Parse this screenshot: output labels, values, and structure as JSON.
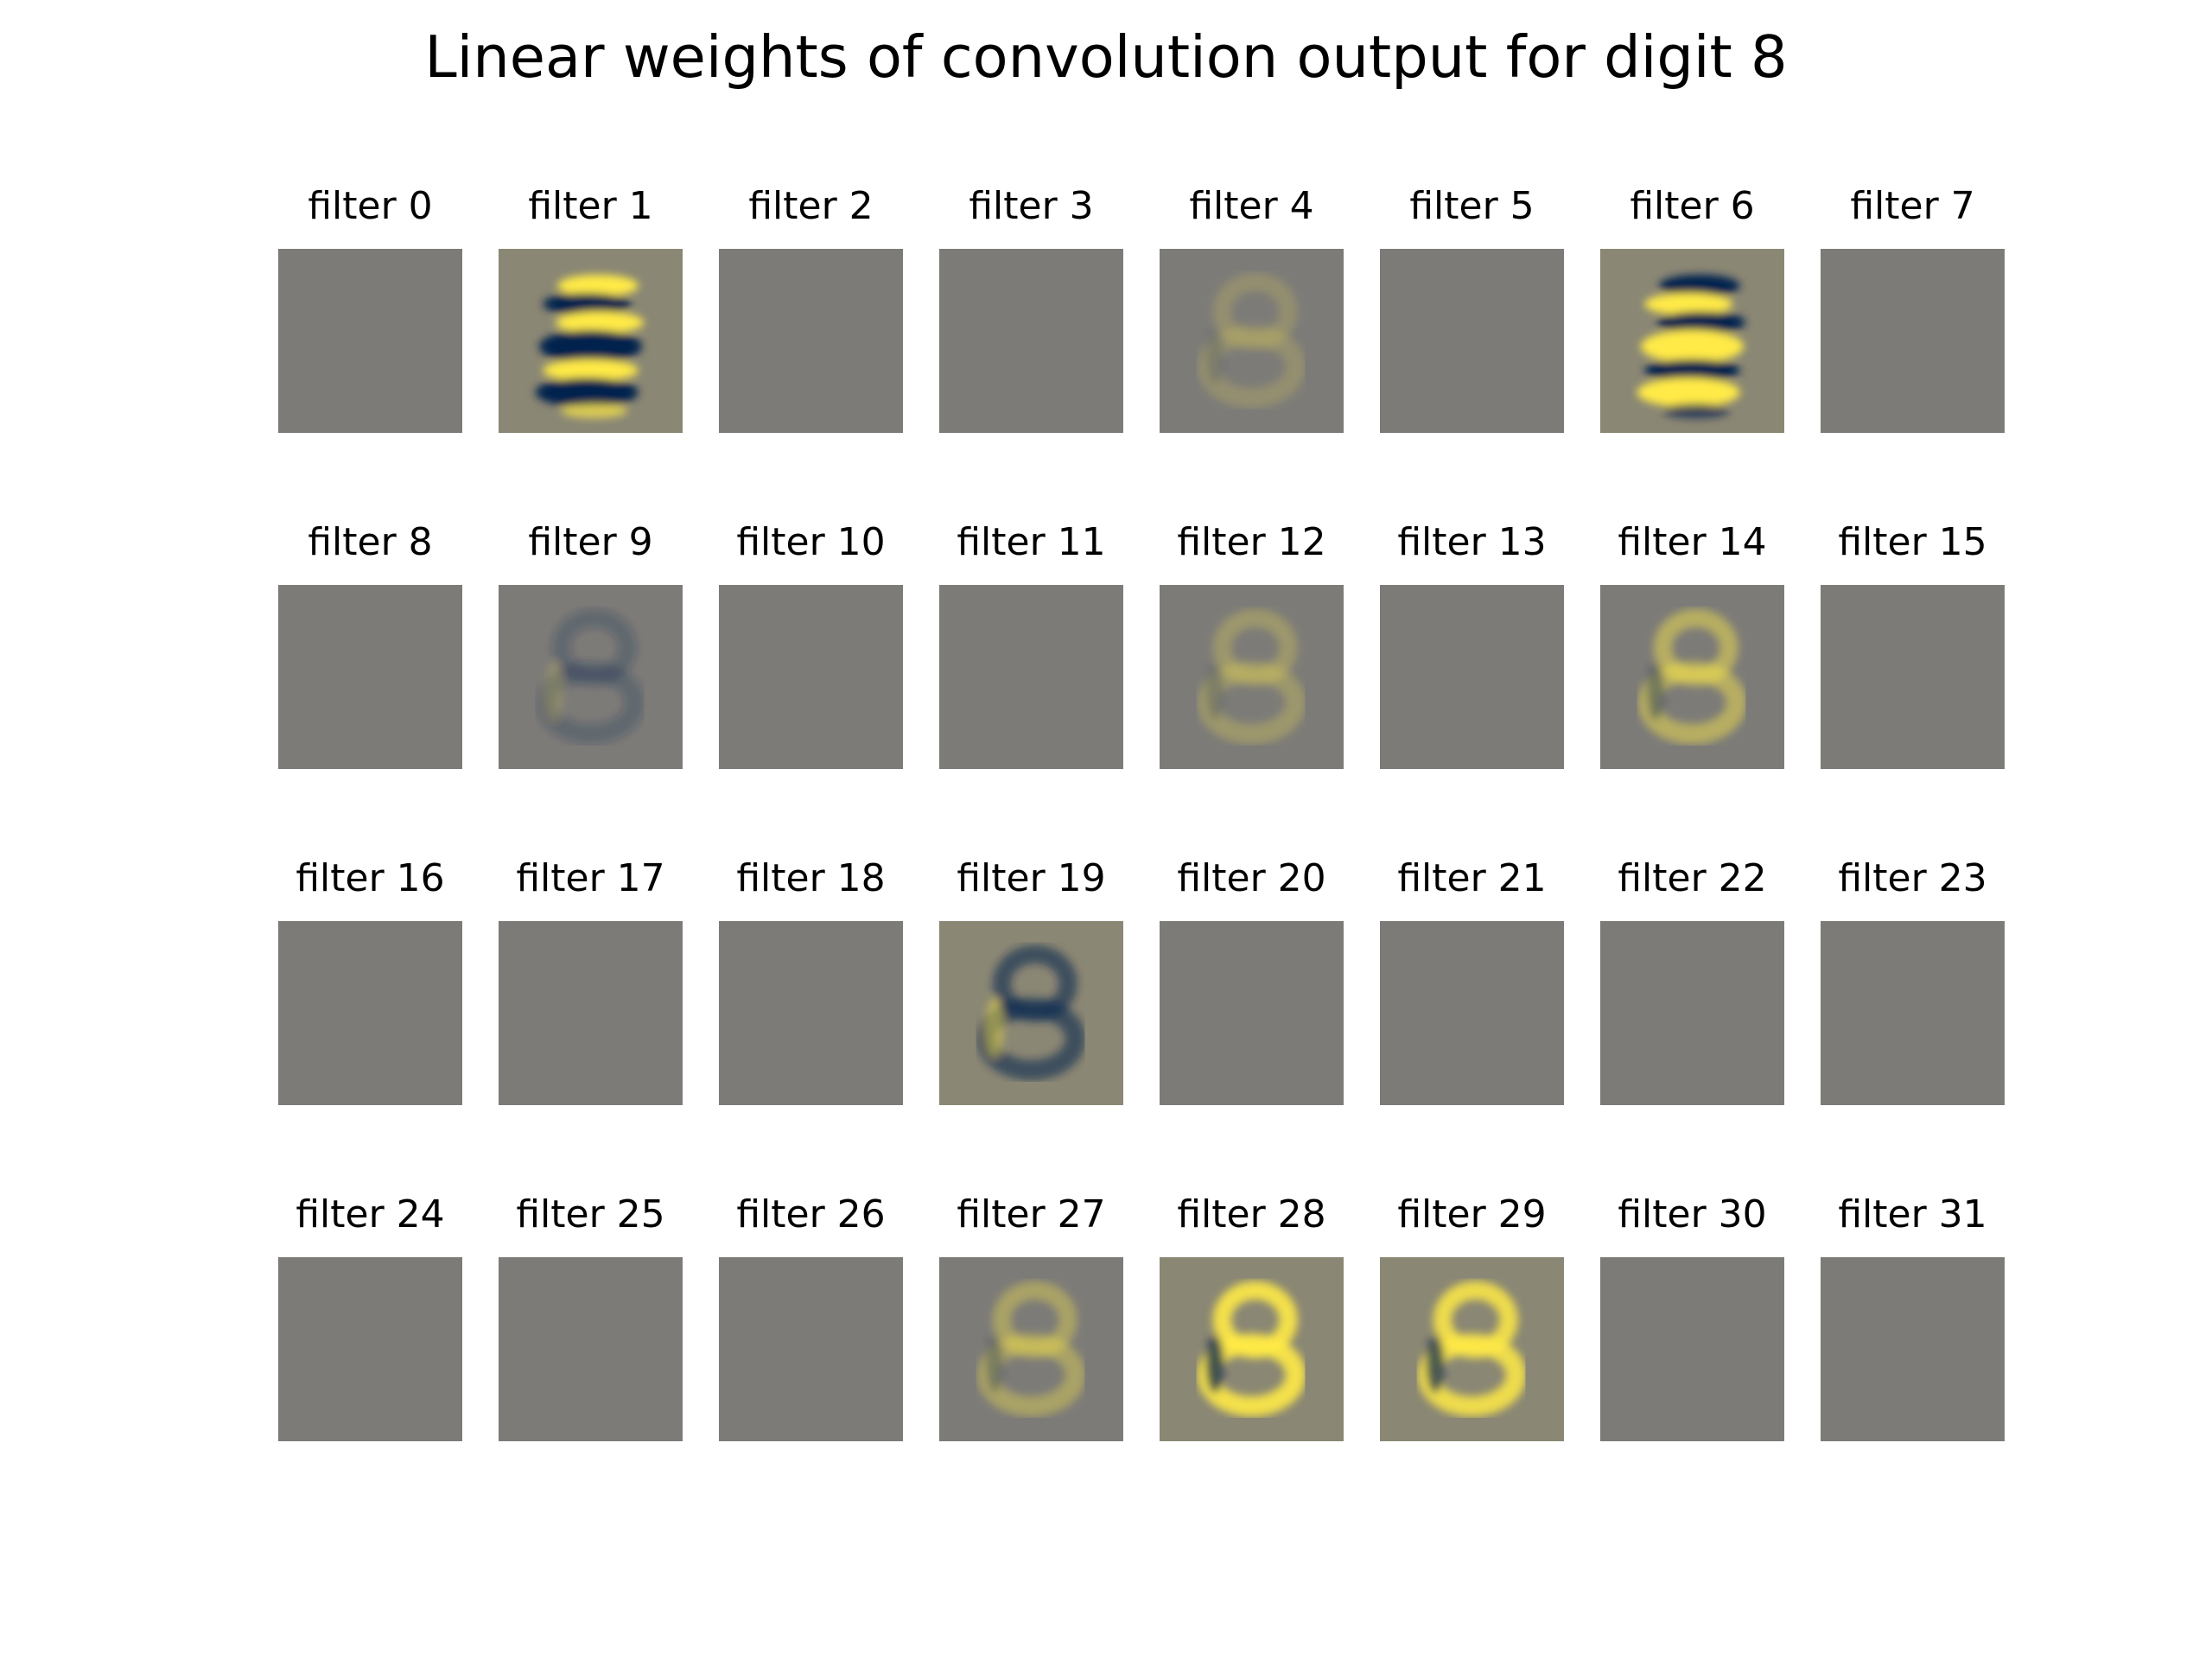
{
  "figure": {
    "title": "Linear weights of convolution output for digit 8"
  },
  "chart_data": {
    "type": "heatmap",
    "title": "Linear weights of convolution output for digit 8",
    "colormap": [
      "#00204d",
      "#7c7b78",
      "#ffea46"
    ],
    "neutral_color": "#7c7b78",
    "grid": {
      "rows": 4,
      "cols": 8
    },
    "panels": [
      {
        "label": "filter 0",
        "pattern": "none",
        "intensity": 0
      },
      {
        "label": "filter 1",
        "pattern": "stripes",
        "intensity": 1.0,
        "polarity": -1
      },
      {
        "label": "filter 2",
        "pattern": "none",
        "intensity": 0
      },
      {
        "label": "filter 3",
        "pattern": "none",
        "intensity": 0
      },
      {
        "label": "filter 4",
        "pattern": "digit",
        "intensity": 0.18,
        "polarity": 1
      },
      {
        "label": "filter 5",
        "pattern": "none",
        "intensity": 0
      },
      {
        "label": "filter 6",
        "pattern": "stripes",
        "intensity": 1.0,
        "polarity": 1
      },
      {
        "label": "filter 7",
        "pattern": "none",
        "intensity": 0
      },
      {
        "label": "filter 8",
        "pattern": "none",
        "intensity": 0
      },
      {
        "label": "filter 9",
        "pattern": "digit",
        "intensity": 0.22,
        "polarity": -1
      },
      {
        "label": "filter 10",
        "pattern": "none",
        "intensity": 0
      },
      {
        "label": "filter 11",
        "pattern": "none",
        "intensity": 0
      },
      {
        "label": "filter 12",
        "pattern": "digit",
        "intensity": 0.25,
        "polarity": 1
      },
      {
        "label": "filter 13",
        "pattern": "none",
        "intensity": 0
      },
      {
        "label": "filter 14",
        "pattern": "digit",
        "intensity": 0.45,
        "polarity": 1
      },
      {
        "label": "filter 15",
        "pattern": "none",
        "intensity": 0
      },
      {
        "label": "filter 16",
        "pattern": "none",
        "intensity": 0
      },
      {
        "label": "filter 17",
        "pattern": "none",
        "intensity": 0
      },
      {
        "label": "filter 18",
        "pattern": "none",
        "intensity": 0
      },
      {
        "label": "filter 19",
        "pattern": "digit",
        "intensity": 0.55,
        "polarity": -1
      },
      {
        "label": "filter 20",
        "pattern": "none",
        "intensity": 0
      },
      {
        "label": "filter 21",
        "pattern": "none",
        "intensity": 0
      },
      {
        "label": "filter 22",
        "pattern": "none",
        "intensity": 0
      },
      {
        "label": "filter 23",
        "pattern": "none",
        "intensity": 0
      },
      {
        "label": "filter 24",
        "pattern": "none",
        "intensity": 0
      },
      {
        "label": "filter 25",
        "pattern": "none",
        "intensity": 0
      },
      {
        "label": "filter 26",
        "pattern": "none",
        "intensity": 0
      },
      {
        "label": "filter 27",
        "pattern": "digit",
        "intensity": 0.35,
        "polarity": 1
      },
      {
        "label": "filter 28",
        "pattern": "digit",
        "intensity": 0.9,
        "polarity": 1
      },
      {
        "label": "filter 29",
        "pattern": "digit",
        "intensity": 0.85,
        "polarity": 1
      },
      {
        "label": "filter 30",
        "pattern": "none",
        "intensity": 0
      },
      {
        "label": "filter 31",
        "pattern": "none",
        "intensity": 0
      }
    ]
  }
}
